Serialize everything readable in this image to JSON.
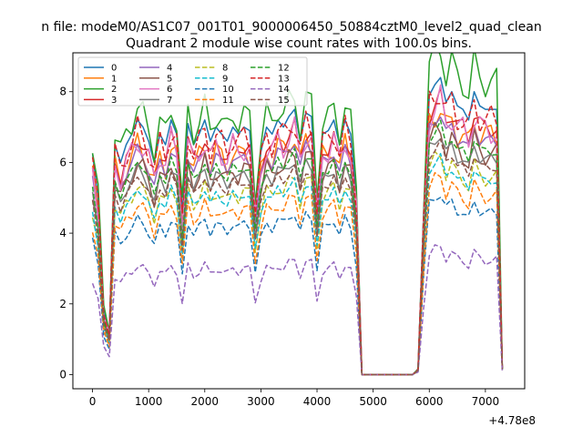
{
  "chart_data": {
    "type": "line",
    "suptitle": "n file: modeM0/AS1C07_001T01_9000006450_50884cztM0_level2_quad_clean",
    "title": "Quadrant 2 module wise count rates with 100.0s bins.",
    "xlabel": "",
    "ylabel": "",
    "x_offset_label": "+4.78e8",
    "xlim": [
      -350,
      7700
    ],
    "ylim": [
      -0.4,
      9.1
    ],
    "xticks": [
      0,
      1000,
      2000,
      3000,
      4000,
      5000,
      6000,
      7000
    ],
    "yticks": [
      0,
      2,
      4,
      6,
      8
    ],
    "grid": false,
    "legend_location": "top-left",
    "legend_columns": 4,
    "x": [
      0,
      100,
      200,
      300,
      400,
      500,
      600,
      700,
      800,
      900,
      1000,
      1100,
      1200,
      1300,
      1400,
      1500,
      1600,
      1700,
      1800,
      1900,
      2000,
      2100,
      2200,
      2300,
      2400,
      2500,
      2600,
      2700,
      2800,
      2900,
      3000,
      3100,
      3200,
      3300,
      3400,
      3500,
      3600,
      3700,
      3800,
      3900,
      4000,
      4100,
      4200,
      4300,
      4400,
      4500,
      4600,
      4700,
      4800,
      4900,
      5000,
      5100,
      5200,
      5300,
      5400,
      5500,
      5600,
      5700,
      5800,
      5900,
      6000,
      6100,
      6200,
      6300,
      6400,
      6500,
      6600,
      6700,
      6800,
      6900,
      7000,
      7100,
      7200,
      7300
    ],
    "series": [
      {
        "name": "0",
        "color": "#1f77b4",
        "dash": "solid"
      },
      {
        "name": "1",
        "color": "#ff7f0e",
        "dash": "solid"
      },
      {
        "name": "2",
        "color": "#2ca02c",
        "dash": "solid"
      },
      {
        "name": "3",
        "color": "#d62728",
        "dash": "solid"
      },
      {
        "name": "4",
        "color": "#9467bd",
        "dash": "solid"
      },
      {
        "name": "5",
        "color": "#8c564b",
        "dash": "solid"
      },
      {
        "name": "6",
        "color": "#e377c2",
        "dash": "solid"
      },
      {
        "name": "7",
        "color": "#7f7f7f",
        "dash": "solid"
      },
      {
        "name": "8",
        "color": "#bcbd22",
        "dash": "dashed"
      },
      {
        "name": "9",
        "color": "#17becf",
        "dash": "dashed"
      },
      {
        "name": "10",
        "color": "#1f77b4",
        "dash": "dashed"
      },
      {
        "name": "11",
        "color": "#ff7f0e",
        "dash": "dashed"
      },
      {
        "name": "12",
        "color": "#2ca02c",
        "dash": "dashed"
      },
      {
        "name": "13",
        "color": "#d62728",
        "dash": "dashed"
      },
      {
        "name": "14",
        "color": "#9467bd",
        "dash": "dashed"
      },
      {
        "name": "15",
        "color": "#8c564b",
        "dash": "dashed"
      }
    ],
    "profile_note_free": true
  }
}
